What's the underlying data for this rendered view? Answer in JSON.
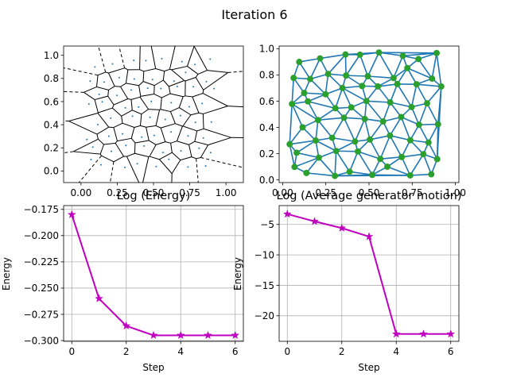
{
  "suptitle": "Iteration 6",
  "colors": {
    "magenta": "#bf00bf",
    "steelblue": "#1f77b4",
    "green": "#2ca02c",
    "grid": "#b0b0b0"
  },
  "chart_data": [
    {
      "type": "scatter",
      "subtype": "voronoi",
      "title": "",
      "xlim": [
        -0.12,
        1.12
      ],
      "ylim": [
        -0.1,
        1.08
      ],
      "xticks": [
        0.0,
        0.25,
        0.5,
        0.75,
        1.0
      ],
      "xtick_labels": [
        "0.00",
        "0.25",
        "0.50",
        "0.75",
        "1.00"
      ],
      "yticks": [
        0.0,
        0.2,
        0.4,
        0.6,
        0.8,
        1.0
      ],
      "ytick_labels": [
        "0.0",
        "0.2",
        "0.4",
        "0.6",
        "0.8",
        "1.0"
      ],
      "grid": false
    },
    {
      "type": "scatter",
      "subtype": "delaunay",
      "title": "",
      "xlim": [
        -0.02,
        1.02
      ],
      "ylim": [
        -0.02,
        1.02
      ],
      "xticks": [
        0.0,
        0.25,
        0.5,
        0.75,
        1.0
      ],
      "xtick_labels": [
        "0.00",
        "0.25",
        "0.50",
        "0.75",
        "1.00"
      ],
      "yticks": [
        0.0,
        0.2,
        0.4,
        0.6,
        0.8,
        1.0
      ],
      "ytick_labels": [
        "0.0",
        "0.2",
        "0.4",
        "0.6",
        "0.8",
        "1.0"
      ],
      "grid": false
    },
    {
      "type": "line",
      "title": "Log (Energy)",
      "xlabel": "Step",
      "ylabel": "Energy",
      "x": [
        0,
        1,
        2,
        3,
        4,
        5,
        6
      ],
      "y": [
        -0.18,
        -0.26,
        -0.286,
        -0.295,
        -0.295,
        -0.295,
        -0.295
      ],
      "xlim": [
        -0.3,
        6.3
      ],
      "ylim": [
        -0.3007,
        -0.1714
      ],
      "xticks": [
        0,
        2,
        4,
        6
      ],
      "xtick_labels": [
        "0",
        "2",
        "4",
        "6"
      ],
      "yticks": [
        -0.3,
        -0.275,
        -0.25,
        -0.225,
        -0.2,
        -0.175
      ],
      "ytick_labels": [
        "−0.300",
        "−0.275",
        "−0.250",
        "−0.225",
        "−0.200",
        "−0.175"
      ],
      "marker": "star",
      "grid": true
    },
    {
      "type": "line",
      "title": "Log (Average generator motion)",
      "xlabel": "Step",
      "ylabel": "Energy",
      "x": [
        0,
        1,
        2,
        3,
        4,
        5,
        6
      ],
      "y": [
        -3.3,
        -4.5,
        -5.6,
        -7.0,
        -23.0,
        -23.0,
        -23.0
      ],
      "xlim": [
        -0.3,
        6.3
      ],
      "ylim": [
        -24.2,
        -1.9
      ],
      "xticks": [
        0,
        2,
        4,
        6
      ],
      "xtick_labels": [
        "0",
        "2",
        "4",
        "6"
      ],
      "yticks": [
        -20,
        -15,
        -10,
        -5
      ],
      "ytick_labels": [
        "−20",
        "−15",
        "−10",
        "−5"
      ],
      "marker": "star",
      "grid": true
    }
  ]
}
